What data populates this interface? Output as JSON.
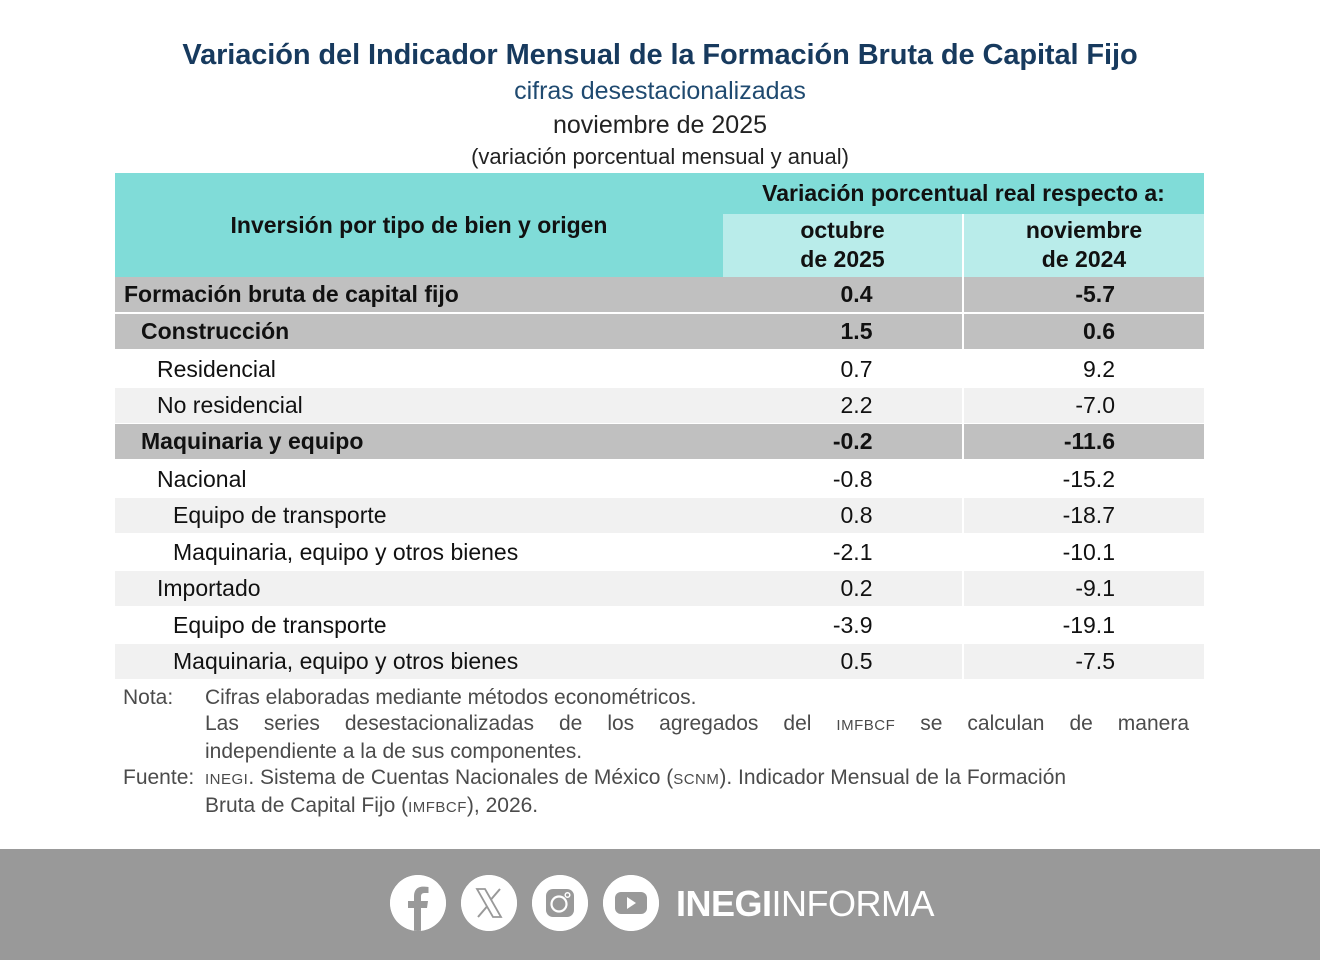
{
  "header": {
    "title": "Variación del Indicador Mensual de la Formación Bruta de Capital Fijo",
    "subtitle": "cifras desestacionalizadas",
    "period": "noviembre de 2025",
    "units": "(variación porcentual mensual y anual)"
  },
  "table": {
    "col_main": "Inversión por tipo de bien y origen",
    "col_group": "Variación porcentual real respecto a:",
    "col_a": [
      "octubre",
      "de 2025"
    ],
    "col_b": [
      "noviembre",
      "de 2024"
    ],
    "rows": [
      {
        "label": "Formación bruta de capital fijo",
        "a": "0.4",
        "b": "-5.7"
      },
      {
        "label": "Construcción",
        "a": "1.5",
        "b": "0.6"
      },
      {
        "label": "Residencial",
        "a": "0.7",
        "b": "9.2"
      },
      {
        "label": "No residencial",
        "a": "2.2",
        "b": "-7.0"
      },
      {
        "label": "Maquinaria y equipo",
        "a": "-0.2",
        "b": "-11.6"
      },
      {
        "label": "Nacional",
        "a": "-0.8",
        "b": "-15.2"
      },
      {
        "label": "Equipo de transporte",
        "a": "0.8",
        "b": "-18.7"
      },
      {
        "label": "Maquinaria, equipo y otros bienes",
        "a": "-2.1",
        "b": "-10.1"
      },
      {
        "label": "Importado",
        "a": "0.2",
        "b": "-9.1"
      },
      {
        "label": "Equipo de transporte",
        "a": "-3.9",
        "b": "-19.1"
      },
      {
        "label": "Maquinaria, equipo y otros bienes",
        "a": "0.5",
        "b": "-7.5"
      }
    ]
  },
  "notes": {
    "nota_label": "Nota:",
    "nota_line1": "Cifras elaboradas mediante métodos econométricos.",
    "nota_line2a": "Las series desestacionalizadas de los agregados del",
    "nota_line2_abbr": "IMFBCF",
    "nota_line2b": "se calculan de manera",
    "nota_line3": "independiente a la de sus componentes.",
    "fuente_label": "Fuente:",
    "fuente_abbr1": "INEGI",
    "fuente_line1a": ". Sistema de Cuentas Nacionales de México (",
    "fuente_abbr2": "SCNM",
    "fuente_line1b": "). Indicador Mensual de la Formación",
    "fuente_line2a": "Bruta de Capital Fijo (",
    "fuente_abbr3": "IMFBCF",
    "fuente_line2b": "), 2026."
  },
  "footer": {
    "icons": [
      "facebook-icon",
      "x-icon",
      "instagram-icon",
      "youtube-icon"
    ],
    "brand_bold": "INEGI",
    "brand_light": "INFORMA",
    "bg_color": "#999999"
  },
  "colors": {
    "title": "#173a5e",
    "header_dark": "#80dcd8",
    "header_light": "#b9ecea",
    "row_bold": "#c0c0c0",
    "row_light": "#f1f1f1"
  }
}
